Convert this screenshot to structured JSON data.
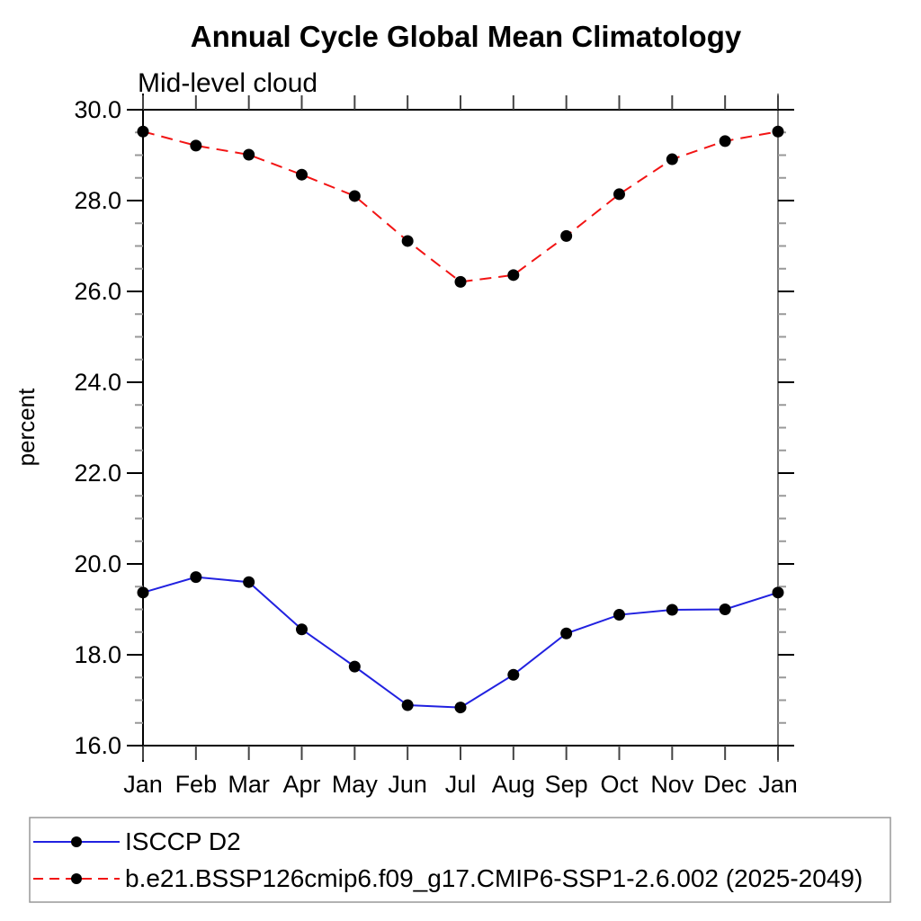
{
  "chart_data": {
    "type": "line",
    "title": "Annual Cycle Global Mean Climatology",
    "subtitle": "Mid-level cloud",
    "ylabel": "percent",
    "xlabel": "",
    "categories": [
      "Jan",
      "Feb",
      "Mar",
      "Apr",
      "May",
      "Jun",
      "Jul",
      "Aug",
      "Sep",
      "Oct",
      "Nov",
      "Dec",
      "Jan"
    ],
    "ylim": [
      16.0,
      30.0
    ],
    "ytick_major": [
      16.0,
      18.0,
      20.0,
      22.0,
      24.0,
      26.0,
      28.0,
      30.0
    ],
    "ytick_labels": [
      "16.0",
      "18.0",
      "20.0",
      "22.0",
      "24.0",
      "26.0",
      "28.0",
      "30.0"
    ],
    "ytick_minor_step": 0.5,
    "grid": false,
    "legend_position": "bottom-left",
    "colors": {
      "axis": "#000000",
      "right_axis": "#777777",
      "month_tick": "#444444",
      "minor_tick": "#999999",
      "legend_border": "#999999",
      "marker": "#000000"
    },
    "series": [
      {
        "name": "ISCCP D2",
        "color": "#2121e0",
        "style": "solid",
        "marker": "circle",
        "values": [
          19.37,
          19.71,
          19.6,
          18.56,
          17.74,
          16.89,
          16.84,
          17.56,
          18.47,
          18.88,
          18.99,
          19.0,
          19.37
        ]
      },
      {
        "name": "b.e21.BSSP126cmip6.f09_g17.CMIP6-SSP1-2.6.002 (2025-2049)",
        "color": "#f21414",
        "style": "dashed",
        "marker": "circle",
        "values": [
          29.52,
          29.21,
          29.01,
          28.57,
          28.1,
          27.11,
          26.21,
          26.36,
          27.22,
          28.14,
          28.91,
          29.31,
          29.52
        ]
      }
    ]
  }
}
